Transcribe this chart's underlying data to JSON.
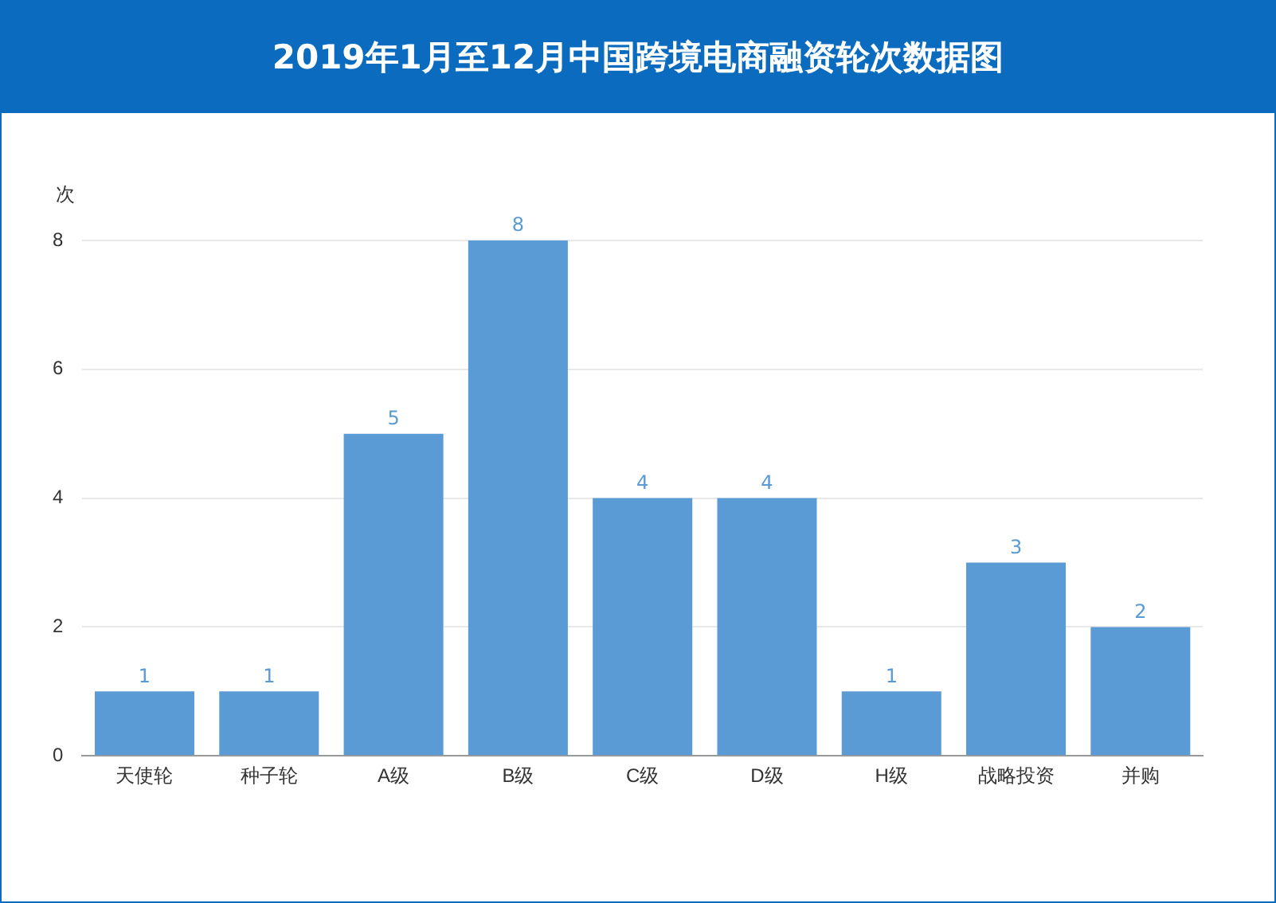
{
  "chart_data": {
    "type": "bar",
    "title": "2019年1月至12月中国跨境电商融资轮次数据图",
    "ylabel": "次",
    "categories": [
      "天使轮",
      "种子轮",
      "A级",
      "B级",
      "C级",
      "D级",
      "H级",
      "战略投资",
      "并购"
    ],
    "values": [
      1,
      1,
      5,
      8,
      4,
      4,
      1,
      3,
      2
    ],
    "color": "#5b9bd5",
    "ylim": [
      0,
      8
    ],
    "yticks": [
      0,
      2,
      4,
      6,
      8
    ],
    "grid": "y",
    "data_labels": true
  }
}
